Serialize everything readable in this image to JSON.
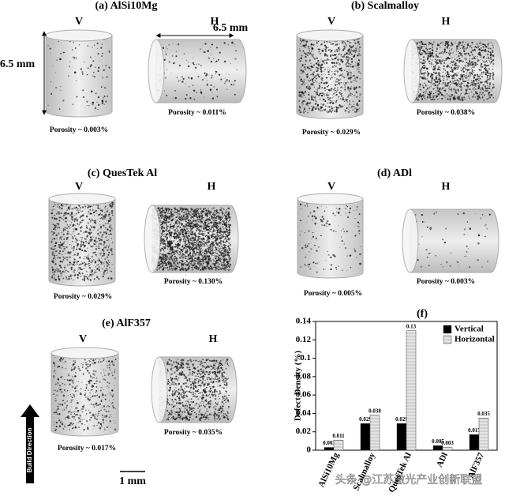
{
  "panels": [
    {
      "label": "(a) AlSi10Mg",
      "v": "V",
      "h": "H",
      "v_porosity": "Porosity ~ 0.003%",
      "h_porosity": "Porosity ~ 0.011%"
    },
    {
      "label": "(b) Scalmalloy",
      "v": "V",
      "h": "H",
      "v_porosity": "Porosity ~ 0.029%",
      "h_porosity": "Porosity ~ 0.038%"
    },
    {
      "label": "(c) QuesTek Al",
      "v": "V",
      "h": "H",
      "v_porosity": "Porosity ~ 0.029%",
      "h_porosity": "Porosity ~ 0.130%"
    },
    {
      "label": "(d) ADl",
      "v": "V",
      "h": "H",
      "v_porosity": "Porosity ~ 0.005%",
      "h_porosity": "Porosity ~ 0.003%"
    },
    {
      "label": "(e) AlF357",
      "v": "V",
      "h": "H",
      "v_porosity": "Porosity ~ 0.017%",
      "h_porosity": "Porosity ~ 0.035%"
    }
  ],
  "dimensions": {
    "height": "6.5 mm",
    "width": "6.5 mm"
  },
  "build_direction": "Build Direction",
  "scale_bar": "1 mm",
  "watermark": "头条 @江苏激光产业创新联盟",
  "chart_data": {
    "type": "bar",
    "title": "(f)",
    "y_label": "Defect Density (%)",
    "categories": [
      "AlSi10Mg",
      "Scalmalloy",
      "QuesTek Al",
      "ADl",
      "AlF357"
    ],
    "series": [
      {
        "name": "Vertical",
        "color": "#000000",
        "values": [
          0.003,
          0.029,
          0.029,
          0.005,
          0.017
        ]
      },
      {
        "name": "Horizontal",
        "color": "#dcdcdc",
        "values": [
          0.011,
          0.038,
          0.13,
          0.003,
          0.035
        ]
      }
    ],
    "ylim": [
      0,
      0.14
    ],
    "yticks": [
      0,
      0.02,
      0.04,
      0.06,
      0.08,
      0.1,
      0.12,
      0.14
    ],
    "legend": "upper right"
  }
}
